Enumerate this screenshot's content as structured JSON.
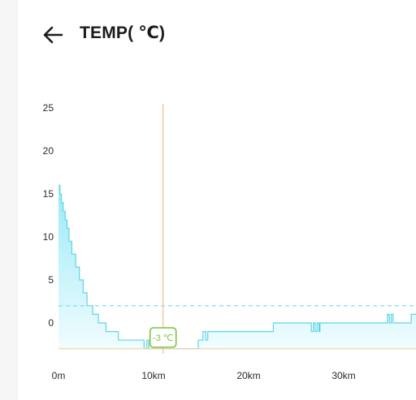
{
  "header": {
    "back_icon": "arrow-left-icon",
    "title": "TEMP( ℃)"
  },
  "colors": {
    "fill_top": "#8ee7f5",
    "fill_bottom": "#effcfe",
    "line": "#5fd4e8",
    "reference_line": "#8fdff0",
    "cursor_line": "#f0c49a",
    "min_line": "#f2cf9c",
    "marker": "#7cc142"
  },
  "chart_data": {
    "type": "area",
    "title": "TEMP( ℃)",
    "xlabel": "",
    "ylabel": "",
    "x_unit": "km",
    "xlim": [
      0,
      38
    ],
    "ylim": [
      -3,
      25
    ],
    "y_ticks": [
      0,
      5,
      10,
      15,
      20,
      25
    ],
    "x_ticks": [
      {
        "value": 0,
        "label": "0m"
      },
      {
        "value": 10,
        "label": "10km"
      },
      {
        "value": 20,
        "label": "20km"
      },
      {
        "value": 30,
        "label": "30km"
      }
    ],
    "reference_line_y": 2,
    "min_line_y": -3,
    "cursor": {
      "x": 11,
      "label": "-3 ℃"
    },
    "grid": false,
    "series": [
      {
        "values": [
          [
            0,
            16
          ],
          [
            0.15,
            15
          ],
          [
            0.3,
            14
          ],
          [
            0.5,
            13
          ],
          [
            0.7,
            12
          ],
          [
            0.9,
            11
          ],
          [
            1.1,
            9.5
          ],
          [
            1.4,
            8
          ],
          [
            1.8,
            6.5
          ],
          [
            2.2,
            5
          ],
          [
            2.6,
            3.5
          ],
          [
            3.0,
            2
          ],
          [
            3.6,
            1
          ],
          [
            4.2,
            0
          ],
          [
            5.0,
            -1
          ],
          [
            6.3,
            -2
          ],
          [
            9.0,
            -3
          ],
          [
            9.3,
            -2
          ],
          [
            9.5,
            -3
          ],
          [
            14.5,
            -3
          ],
          [
            14.7,
            -2
          ],
          [
            15.2,
            -1
          ],
          [
            15.5,
            -2
          ],
          [
            15.7,
            -1
          ],
          [
            22.5,
            -1
          ],
          [
            22.6,
            0
          ],
          [
            26.5,
            0
          ],
          [
            26.6,
            -1
          ],
          [
            26.8,
            0
          ],
          [
            27.0,
            -1
          ],
          [
            27.2,
            0
          ],
          [
            27.4,
            -1
          ],
          [
            27.5,
            0
          ],
          [
            34.5,
            0
          ],
          [
            34.6,
            1
          ],
          [
            34.8,
            0
          ],
          [
            35.0,
            1
          ],
          [
            35.2,
            0
          ],
          [
            37.0,
            0
          ],
          [
            37.1,
            1
          ],
          [
            38,
            1
          ]
        ]
      }
    ]
  }
}
